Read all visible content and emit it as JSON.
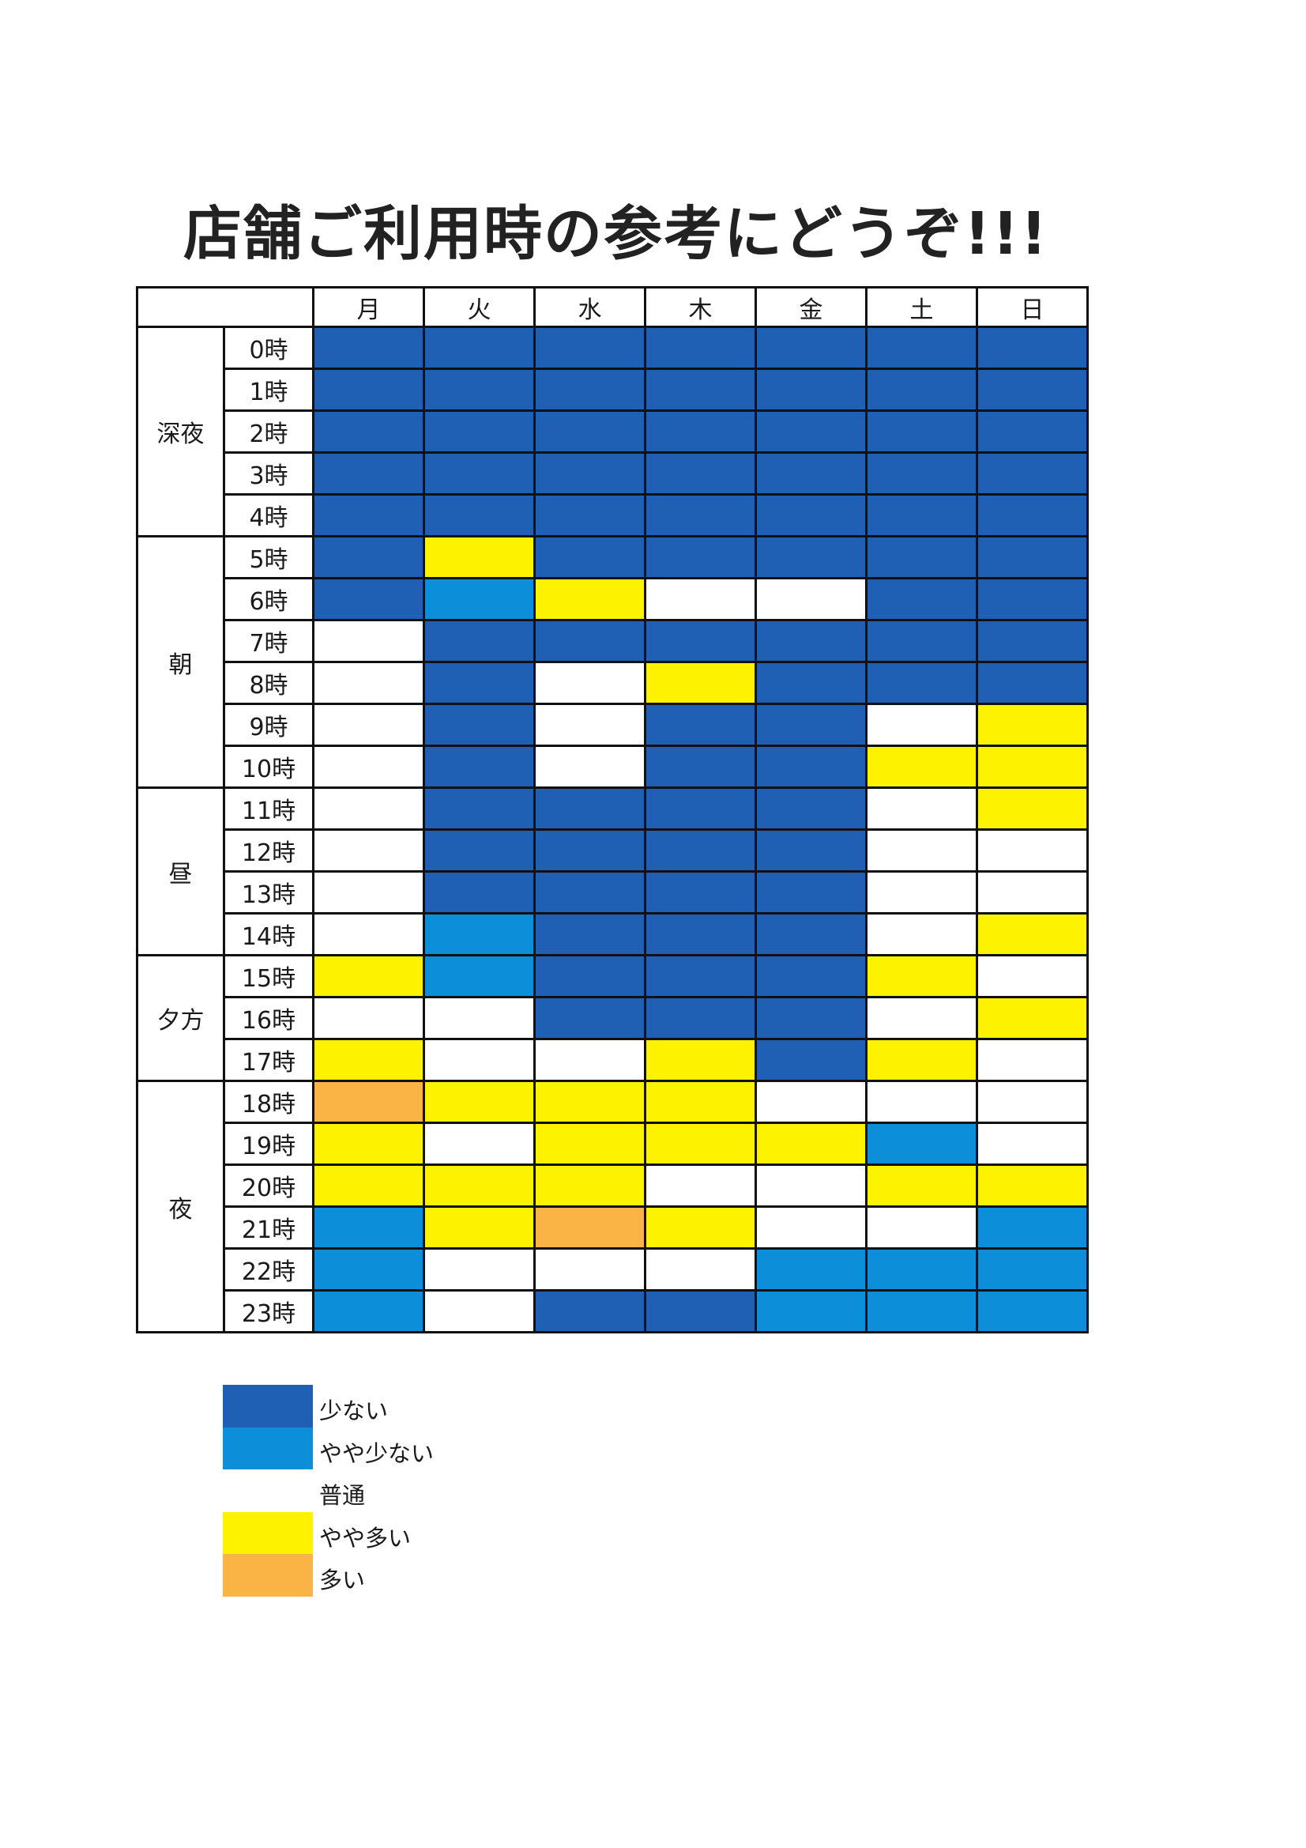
{
  "title": "店舗ご利用時の参考にどうぞ!!!",
  "days": [
    "月",
    "火",
    "水",
    "木",
    "金",
    "土",
    "日"
  ],
  "periods": [
    {
      "label": "深夜",
      "rows": 5
    },
    {
      "label": "朝",
      "rows": 6
    },
    {
      "label": "昼",
      "rows": 4
    },
    {
      "label": "夕方",
      "rows": 3
    },
    {
      "label": "夜",
      "rows": 6
    }
  ],
  "hours": [
    "0時",
    "1時",
    "2時",
    "3時",
    "4時",
    "5時",
    "6時",
    "7時",
    "8時",
    "9時",
    "10時",
    "11時",
    "12時",
    "13時",
    "14時",
    "15時",
    "16時",
    "17時",
    "18時",
    "19時",
    "20時",
    "21時",
    "22時",
    "23時"
  ],
  "levels": [
    {
      "label": "少ない",
      "color": "#1f5fb4"
    },
    {
      "label": "やや少ない",
      "color": "#0d8ed8"
    },
    {
      "label": "普通",
      "color": "#ffffff"
    },
    {
      "label": "やや多い",
      "color": "#fdf200"
    },
    {
      "label": "多い",
      "color": "#f9b445"
    }
  ],
  "grid": [
    [
      0,
      0,
      0,
      0,
      0,
      0,
      0
    ],
    [
      0,
      0,
      0,
      0,
      0,
      0,
      0
    ],
    [
      0,
      0,
      0,
      0,
      0,
      0,
      0
    ],
    [
      0,
      0,
      0,
      0,
      0,
      0,
      0
    ],
    [
      0,
      0,
      0,
      0,
      0,
      0,
      0
    ],
    [
      0,
      3,
      0,
      0,
      0,
      0,
      0
    ],
    [
      0,
      1,
      3,
      2,
      2,
      0,
      0
    ],
    [
      2,
      0,
      0,
      0,
      0,
      0,
      0
    ],
    [
      2,
      0,
      2,
      3,
      0,
      0,
      0
    ],
    [
      2,
      0,
      2,
      0,
      0,
      2,
      3
    ],
    [
      2,
      0,
      2,
      0,
      0,
      3,
      3
    ],
    [
      2,
      0,
      0,
      0,
      0,
      2,
      3
    ],
    [
      2,
      0,
      0,
      0,
      0,
      2,
      2
    ],
    [
      2,
      0,
      0,
      0,
      0,
      2,
      2
    ],
    [
      2,
      1,
      0,
      0,
      0,
      2,
      3
    ],
    [
      3,
      1,
      0,
      0,
      0,
      3,
      2
    ],
    [
      2,
      2,
      0,
      0,
      0,
      2,
      3
    ],
    [
      3,
      2,
      2,
      3,
      0,
      3,
      2
    ],
    [
      4,
      3,
      3,
      3,
      2,
      2,
      2
    ],
    [
      3,
      2,
      3,
      3,
      3,
      1,
      2
    ],
    [
      3,
      3,
      3,
      2,
      2,
      3,
      3
    ],
    [
      1,
      3,
      4,
      3,
      2,
      2,
      1
    ],
    [
      1,
      2,
      2,
      2,
      1,
      1,
      1
    ],
    [
      1,
      2,
      0,
      0,
      1,
      1,
      1
    ]
  ]
}
